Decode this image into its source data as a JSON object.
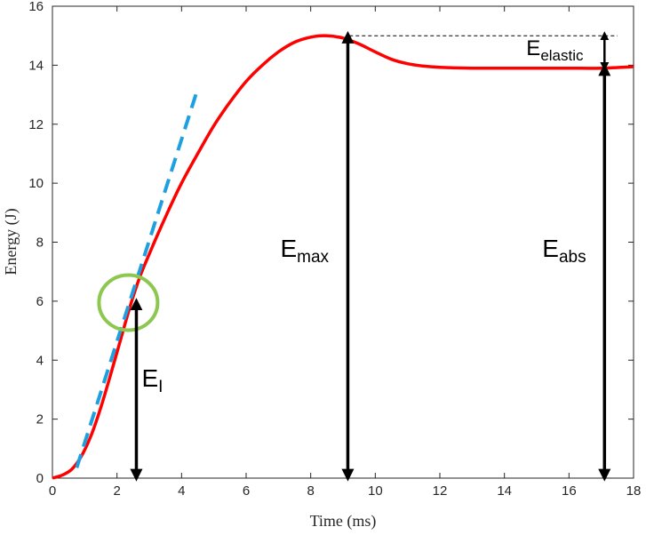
{
  "chart_data": {
    "type": "line",
    "xlabel": "Time (ms)",
    "ylabel": "Energy (J)",
    "xlim": [
      0,
      18
    ],
    "ylim": [
      0,
      16
    ],
    "xticks": [
      0,
      2,
      4,
      6,
      8,
      10,
      12,
      14,
      16,
      18
    ],
    "yticks": [
      0,
      2,
      4,
      6,
      8,
      10,
      12,
      14,
      16
    ],
    "grid": false,
    "series": [
      {
        "color": "#ff0000",
        "style": "solid",
        "x": [
          0,
          0.3,
          0.6,
          0.9,
          1.2,
          1.5,
          1.8,
          2.1,
          2.4,
          2.7,
          3.0,
          3.5,
          4.0,
          4.5,
          5.0,
          5.5,
          6.0,
          6.5,
          7.0,
          7.5,
          8.0,
          8.5,
          9.0,
          9.5,
          10.0,
          10.5,
          11.0,
          11.5,
          12.0,
          12.5,
          13.0,
          14.0,
          15.0,
          16.0,
          17.0,
          18.0
        ],
        "y": [
          0,
          0.1,
          0.3,
          0.75,
          1.45,
          2.4,
          3.5,
          4.65,
          5.8,
          6.8,
          7.6,
          8.85,
          10.0,
          11.0,
          11.95,
          12.75,
          13.45,
          14.0,
          14.45,
          14.78,
          14.95,
          15.0,
          14.92,
          14.72,
          14.45,
          14.2,
          14.05,
          13.97,
          13.93,
          13.91,
          13.9,
          13.9,
          13.9,
          13.9,
          13.9,
          13.95
        ]
      },
      {
        "color": "#1ea0e0",
        "style": "dashed",
        "x": [
          0.75,
          4.5
        ],
        "y": [
          0.35,
          13.2
        ]
      }
    ],
    "reference_lines": [
      {
        "style": "dotted",
        "y": 15.0,
        "x_from": 9.2,
        "x_to": 17.5
      }
    ],
    "circle_marker": {
      "x": 2.35,
      "y": 5.95,
      "color": "#8cc850"
    },
    "arrows": [
      {
        "x": 2.6,
        "y_from": 0.1,
        "y_to": 5.9,
        "label": "E",
        "sub": "I"
      },
      {
        "x": 9.15,
        "y_from": 0.1,
        "y_to": 14.95,
        "label": "E",
        "sub": "max"
      },
      {
        "x": 17.1,
        "y_from": 0.1,
        "y_to": 13.85,
        "label": "E",
        "sub": "abs"
      },
      {
        "x": 17.1,
        "y_from": 13.95,
        "y_to": 15.0,
        "label": "E",
        "sub": "elastic"
      }
    ]
  }
}
